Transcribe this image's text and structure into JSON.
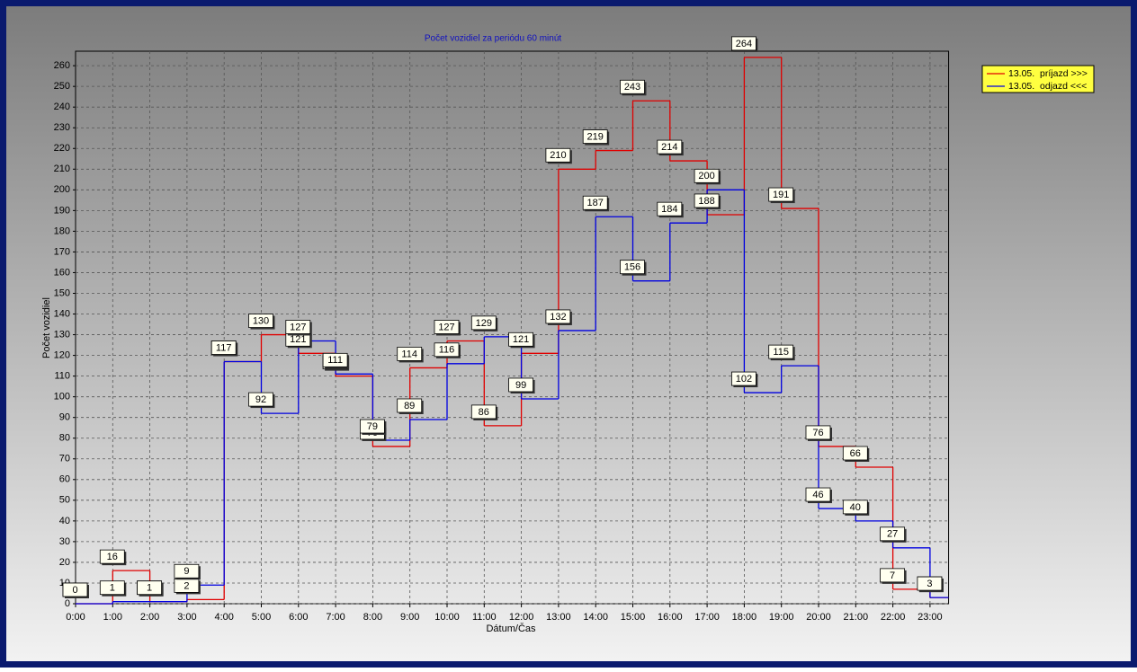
{
  "chart_data": {
    "type": "step-line",
    "title": "Počet vozidiel za periódu 60 minút",
    "x_label": "Dátum/Čas",
    "y_label": "Počet vozidiel",
    "categories": [
      "0:00",
      "1:00",
      "2:00",
      "3:00",
      "4:00",
      "5:00",
      "6:00",
      "7:00",
      "8:00",
      "9:00",
      "10:00",
      "11:00",
      "12:00",
      "13:00",
      "14:00",
      "15:00",
      "16:00",
      "17:00",
      "18:00",
      "19:00",
      "20:00",
      "21:00",
      "22:00",
      "23:00"
    ],
    "series": [
      {
        "name": "13.05.  príjazd >>>",
        "color": "#e00000",
        "values": [
          0,
          16,
          1,
          2,
          117,
          130,
          121,
          110,
          76,
          114,
          127,
          86,
          121,
          210,
          219,
          243,
          214,
          188,
          264,
          191,
          76,
          66,
          7,
          3
        ]
      },
      {
        "name": "13.05.  odjazd <<<",
        "color": "#0000e0",
        "values": [
          0,
          1,
          1,
          9,
          117,
          92,
          127,
          111,
          79,
          89,
          116,
          129,
          99,
          132,
          187,
          156,
          184,
          200,
          102,
          115,
          46,
          40,
          27,
          3
        ]
      }
    ],
    "ylim": [
      0,
      267
    ],
    "yticks": [
      0,
      10,
      20,
      30,
      40,
      50,
      60,
      70,
      80,
      90,
      100,
      110,
      120,
      130,
      140,
      150,
      160,
      170,
      180,
      190,
      200,
      210,
      220,
      230,
      240,
      250,
      260
    ],
    "grid": true,
    "legend": "top-right"
  }
}
